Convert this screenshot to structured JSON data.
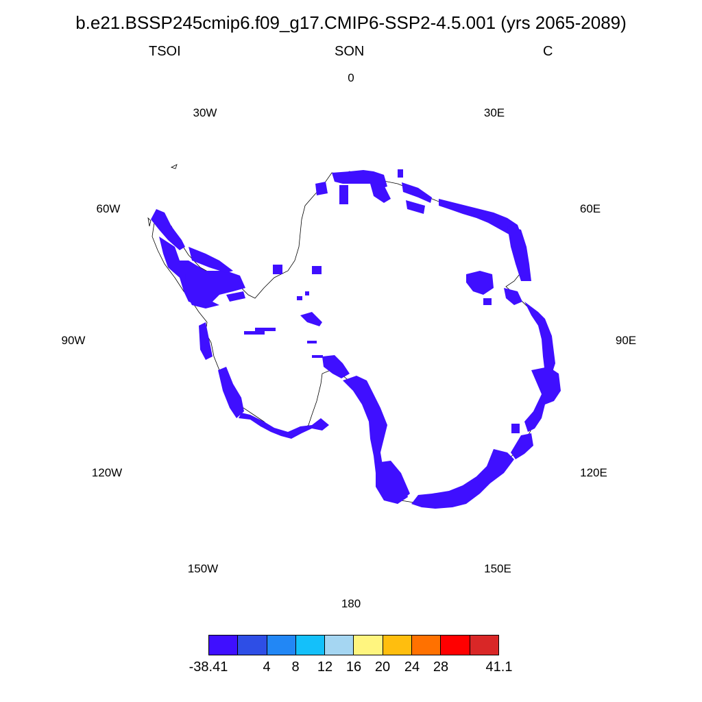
{
  "header": {
    "title": "b.e21.BSSP245cmip6.f09_g17.CMIP6-SSP2-4.5.001 (yrs 2065-2089)",
    "variable": "TSOI",
    "season": "SON",
    "units": "C"
  },
  "longitude_labels": [
    "0",
    "30E",
    "60E",
    "90E",
    "120E",
    "150E",
    "180",
    "150W",
    "120W",
    "90W",
    "60W",
    "30W"
  ],
  "colorbar": {
    "colors": [
      "#3f0fff",
      "#2e4ee6",
      "#2287f5",
      "#14c0fa",
      "#a5d6f2",
      "#fff57f",
      "#ffbe0e",
      "#ff7100",
      "#ff0000",
      "#d92727"
    ],
    "labels": [
      "-38.41",
      "4",
      "8",
      "12",
      "16",
      "20",
      "24",
      "28",
      "41.1"
    ]
  },
  "map": {
    "projection": "south-polar-stereographic",
    "fill_color": "#3f0fff",
    "region": "Antarctica"
  }
}
